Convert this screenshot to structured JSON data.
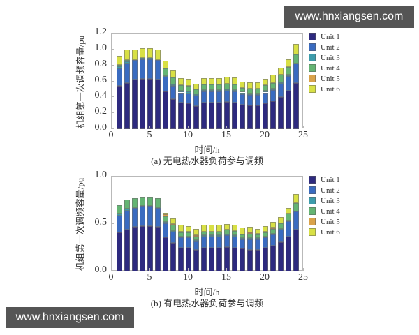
{
  "watermarks": {
    "top": "www.hnxiangsen.com",
    "bottom": "www.hnxiangsen.com"
  },
  "legend_colors": {
    "Unit 1": "#2e2a7f",
    "Unit 2": "#3a6bc0",
    "Unit 3": "#3d9cab",
    "Unit 4": "#64b473",
    "Unit 5": "#d9a24a",
    "Unit 6": "#d8e045"
  },
  "chart_data": [
    {
      "type": "bar",
      "stacked": true,
      "title": "(a) 无电热水器负荷参与调频",
      "xlabel": "时间/h",
      "ylabel": "机组第一次调频容量/pu",
      "xlim": [
        0,
        25
      ],
      "ylim": [
        0,
        1.2
      ],
      "xticks": [
        "0",
        "5",
        "10",
        "15",
        "20",
        "25"
      ],
      "yticks": [
        "0.0",
        "0.2",
        "0.4",
        "0.6",
        "0.8",
        "1.0",
        "1.2"
      ],
      "grid": false,
      "legend_position": "right",
      "categories": [
        1,
        2,
        3,
        4,
        5,
        6,
        7,
        8,
        9,
        10,
        11,
        12,
        13,
        14,
        15,
        16,
        17,
        18,
        19,
        20,
        21,
        22,
        23,
        24
      ],
      "series": [
        {
          "name": "Unit 1",
          "values": [
            0.54,
            0.58,
            0.62,
            0.63,
            0.63,
            0.62,
            0.47,
            0.38,
            0.33,
            0.32,
            0.29,
            0.33,
            0.33,
            0.33,
            0.34,
            0.33,
            0.31,
            0.3,
            0.3,
            0.32,
            0.35,
            0.4,
            0.48,
            0.58
          ]
        },
        {
          "name": "Unit 2",
          "values": [
            0.22,
            0.24,
            0.25,
            0.25,
            0.25,
            0.25,
            0.19,
            0.16,
            0.13,
            0.13,
            0.13,
            0.14,
            0.14,
            0.14,
            0.14,
            0.14,
            0.13,
            0.13,
            0.13,
            0.14,
            0.14,
            0.17,
            0.19,
            0.24
          ]
        },
        {
          "name": "Unit 3",
          "values": [
            0.03,
            0.03,
            0.0,
            0.01,
            0.01,
            0.0,
            0.01,
            0.02,
            0.02,
            0.02,
            0.02,
            0.02,
            0.02,
            0.02,
            0.02,
            0.02,
            0.02,
            0.02,
            0.02,
            0.02,
            0.02,
            0.02,
            0.01,
            0.0
          ]
        },
        {
          "name": "Unit 4",
          "values": [
            0.02,
            0.02,
            0.0,
            0.0,
            0.0,
            0.0,
            0.09,
            0.09,
            0.07,
            0.07,
            0.06,
            0.07,
            0.07,
            0.07,
            0.07,
            0.07,
            0.06,
            0.06,
            0.06,
            0.07,
            0.07,
            0.09,
            0.1,
            0.12
          ]
        },
        {
          "name": "Unit 5",
          "values": [
            0.0,
            0.0,
            0.0,
            0.0,
            0.0,
            0.0,
            0.0,
            0.0,
            0.0,
            0.0,
            0.0,
            0.0,
            0.0,
            0.0,
            0.0,
            0.0,
            0.0,
            0.0,
            0.0,
            0.0,
            0.0,
            0.0,
            0.0,
            0.0
          ]
        },
        {
          "name": "Unit 6",
          "values": [
            0.11,
            0.13,
            0.13,
            0.13,
            0.13,
            0.13,
            0.1,
            0.09,
            0.09,
            0.09,
            0.07,
            0.08,
            0.08,
            0.08,
            0.09,
            0.09,
            0.08,
            0.08,
            0.08,
            0.08,
            0.1,
            0.09,
            0.1,
            0.13
          ]
        }
      ]
    },
    {
      "type": "bar",
      "stacked": true,
      "title": "(b) 有电热水器负荷参与调频",
      "xlabel": "时间/h",
      "ylabel": "机组第一次调频容量/pu",
      "xlim": [
        0,
        25
      ],
      "ylim": [
        0,
        1.0
      ],
      "xticks": [
        "0",
        "5",
        "10",
        "15",
        "20",
        "25"
      ],
      "yticks": [
        "0.0",
        "0.5",
        "1.0"
      ],
      "grid": false,
      "legend_position": "right",
      "categories": [
        1,
        2,
        3,
        4,
        5,
        6,
        7,
        8,
        9,
        10,
        11,
        12,
        13,
        14,
        15,
        16,
        17,
        18,
        19,
        20,
        21,
        22,
        23,
        24
      ],
      "series": [
        {
          "name": "Unit 1",
          "values": [
            0.41,
            0.44,
            0.47,
            0.48,
            0.48,
            0.47,
            0.36,
            0.3,
            0.25,
            0.25,
            0.23,
            0.25,
            0.25,
            0.25,
            0.26,
            0.25,
            0.24,
            0.23,
            0.23,
            0.25,
            0.27,
            0.31,
            0.37,
            0.44
          ]
        },
        {
          "name": "Unit 2",
          "values": [
            0.18,
            0.2,
            0.2,
            0.21,
            0.21,
            0.2,
            0.15,
            0.12,
            0.11,
            0.11,
            0.09,
            0.12,
            0.12,
            0.12,
            0.12,
            0.12,
            0.1,
            0.11,
            0.11,
            0.11,
            0.12,
            0.13,
            0.16,
            0.19
          ]
        },
        {
          "name": "Unit 3",
          "values": [
            0.02,
            0.02,
            0.0,
            0.0,
            0.0,
            0.0,
            0.01,
            0.01,
            0.01,
            0.01,
            0.01,
            0.01,
            0.01,
            0.01,
            0.01,
            0.01,
            0.01,
            0.01,
            0.01,
            0.01,
            0.01,
            0.01,
            0.01,
            0.0
          ]
        },
        {
          "name": "Unit 4",
          "values": [
            0.09,
            0.1,
            0.1,
            0.1,
            0.1,
            0.1,
            0.06,
            0.06,
            0.04,
            0.04,
            0.04,
            0.04,
            0.04,
            0.04,
            0.05,
            0.05,
            0.04,
            0.05,
            0.04,
            0.04,
            0.05,
            0.06,
            0.07,
            0.09
          ]
        },
        {
          "name": "Unit 5",
          "values": [
            0.0,
            0.0,
            0.0,
            0.0,
            0.0,
            0.0,
            0.02,
            0.01,
            0.01,
            0.01,
            0.01,
            0.0,
            0.0,
            0.0,
            0.0,
            0.0,
            0.0,
            0.01,
            0.01,
            0.01,
            0.01,
            0.0,
            0.0,
            0.0
          ]
        },
        {
          "name": "Unit 6",
          "values": [
            0.0,
            0.0,
            0.0,
            0.0,
            0.0,
            0.0,
            0.02,
            0.06,
            0.07,
            0.06,
            0.07,
            0.07,
            0.07,
            0.07,
            0.06,
            0.06,
            0.07,
            0.06,
            0.05,
            0.06,
            0.06,
            0.06,
            0.06,
            0.1
          ]
        }
      ]
    }
  ]
}
